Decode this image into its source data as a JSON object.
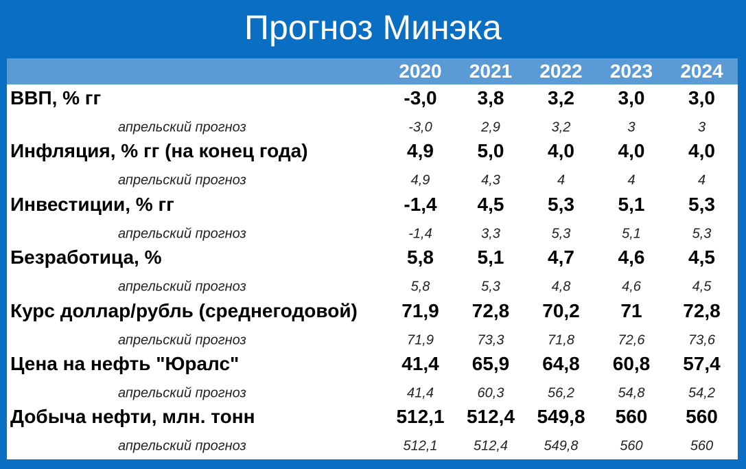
{
  "header": {
    "title": "Прогноз Минэка"
  },
  "table": {
    "columns": [
      "2020",
      "2021",
      "2022",
      "2023",
      "2024"
    ],
    "rows": [
      {
        "label": "ВВП, % гг",
        "values": [
          "-3,0",
          "3,8",
          "3,2",
          "3,0",
          "3,0"
        ]
      },
      {
        "label": "апрельский прогноз",
        "values": [
          "-3,0",
          "2,9",
          "3,2",
          "3",
          "3"
        ]
      },
      {
        "label": "Инфляция, % гг (на конец года)",
        "values": [
          "4,9",
          "5,0",
          "4,0",
          "4,0",
          "4,0"
        ]
      },
      {
        "label": "апрельский прогноз",
        "values": [
          "4,9",
          "4,3",
          "4",
          "4",
          "4"
        ]
      },
      {
        "label": "Инвестиции, % гг",
        "values": [
          "-1,4",
          "4,5",
          "5,3",
          "5,1",
          "5,3"
        ]
      },
      {
        "label": "апрельский прогноз",
        "values": [
          "-1,4",
          "3,3",
          "5,3",
          "5,1",
          "5,3"
        ]
      },
      {
        "label": "Безработица, %",
        "values": [
          "5,8",
          "5,1",
          "4,7",
          "4,6",
          "4,5"
        ]
      },
      {
        "label": "апрельский прогноз",
        "values": [
          "5,8",
          "5,3",
          "4,8",
          "4,6",
          "4,5"
        ]
      },
      {
        "label": "Курс доллар/рубль (среднегодовой)",
        "values": [
          "71,9",
          "72,8",
          "70,2",
          "71",
          "72,8"
        ]
      },
      {
        "label": "апрельский прогноз",
        "values": [
          "71,9",
          "73,3",
          "71,8",
          "72,6",
          "73,6"
        ]
      },
      {
        "label": "Цена на нефть \"Юралс\"",
        "values": [
          "41,4",
          "65,9",
          "64,8",
          "60,8",
          "57,4"
        ]
      },
      {
        "label": "апрельский прогноз",
        "values": [
          "41,4",
          "60,3",
          "56,2",
          "54,8",
          "54,2"
        ]
      },
      {
        "label": "Добыча нефти, млн. тонн",
        "values": [
          "512,1",
          "512,4",
          "549,8",
          "560",
          "560"
        ]
      },
      {
        "label": "апрельский прогноз",
        "values": [
          "512,1",
          "512,4",
          "549,8",
          "560",
          "560"
        ]
      }
    ]
  }
}
